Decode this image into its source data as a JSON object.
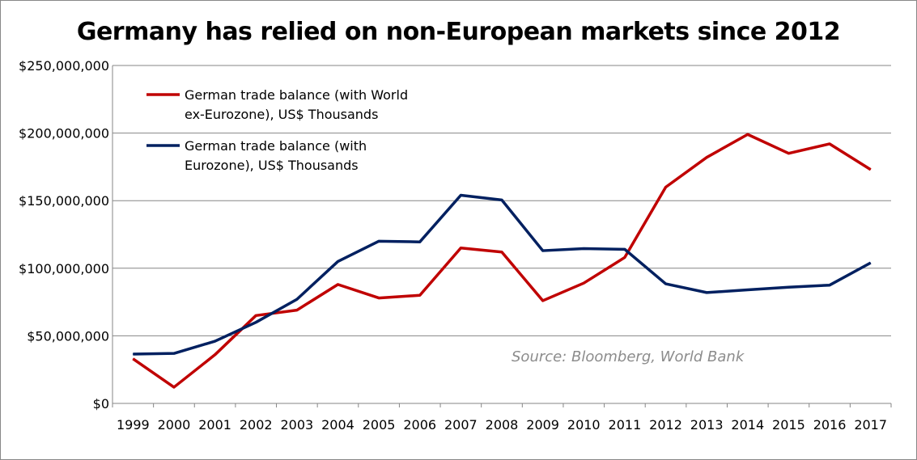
{
  "chart_data": {
    "type": "line",
    "title": "Germany has relied on non-European markets since 2012",
    "xlabel": "",
    "ylabel": "",
    "ylim": [
      0,
      250000000
    ],
    "grid": true,
    "legend_placement": "top-left",
    "y_ticks": [
      0,
      50000000,
      100000000,
      150000000,
      200000000,
      250000000
    ],
    "y_tick_labels": [
      "$0",
      "$50,000,000",
      "$100,000,000",
      "$150,000,000",
      "$200,000,000",
      "$250,000,000"
    ],
    "categories": [
      "1999",
      "2000",
      "2001",
      "2002",
      "2003",
      "2004",
      "2005",
      "2006",
      "2007",
      "2008",
      "2009",
      "2010",
      "2011",
      "2012",
      "2013",
      "2014",
      "2015",
      "2016",
      "2017"
    ],
    "series": [
      {
        "name": "German trade balance (with World ex-Eurozone), US$ Thousands",
        "legend_lines": [
          "German trade balance (with World",
          "ex-Eurozone), US$ Thousands"
        ],
        "color": "#c00000",
        "values": [
          33000000,
          12000000,
          36000000,
          65000000,
          69000000,
          88000000,
          78000000,
          80000000,
          115000000,
          112000000,
          76000000,
          89000000,
          108000000,
          160000000,
          182000000,
          199000000,
          185000000,
          192000000,
          173000000
        ]
      },
      {
        "name": "German trade balance (with Eurozone), US$ Thousands",
        "legend_lines": [
          "German trade balance (with",
          "Eurozone), US$ Thousands"
        ],
        "color": "#002060",
        "values": [
          36500000,
          37000000,
          46000000,
          60000000,
          77000000,
          105000000,
          120000000,
          119500000,
          154000000,
          150500000,
          113000000,
          114500000,
          114000000,
          88500000,
          82000000,
          84000000,
          86000000,
          87500000,
          104000000
        ]
      }
    ],
    "annotations": [
      "Source: Bloomberg, World Bank"
    ]
  }
}
